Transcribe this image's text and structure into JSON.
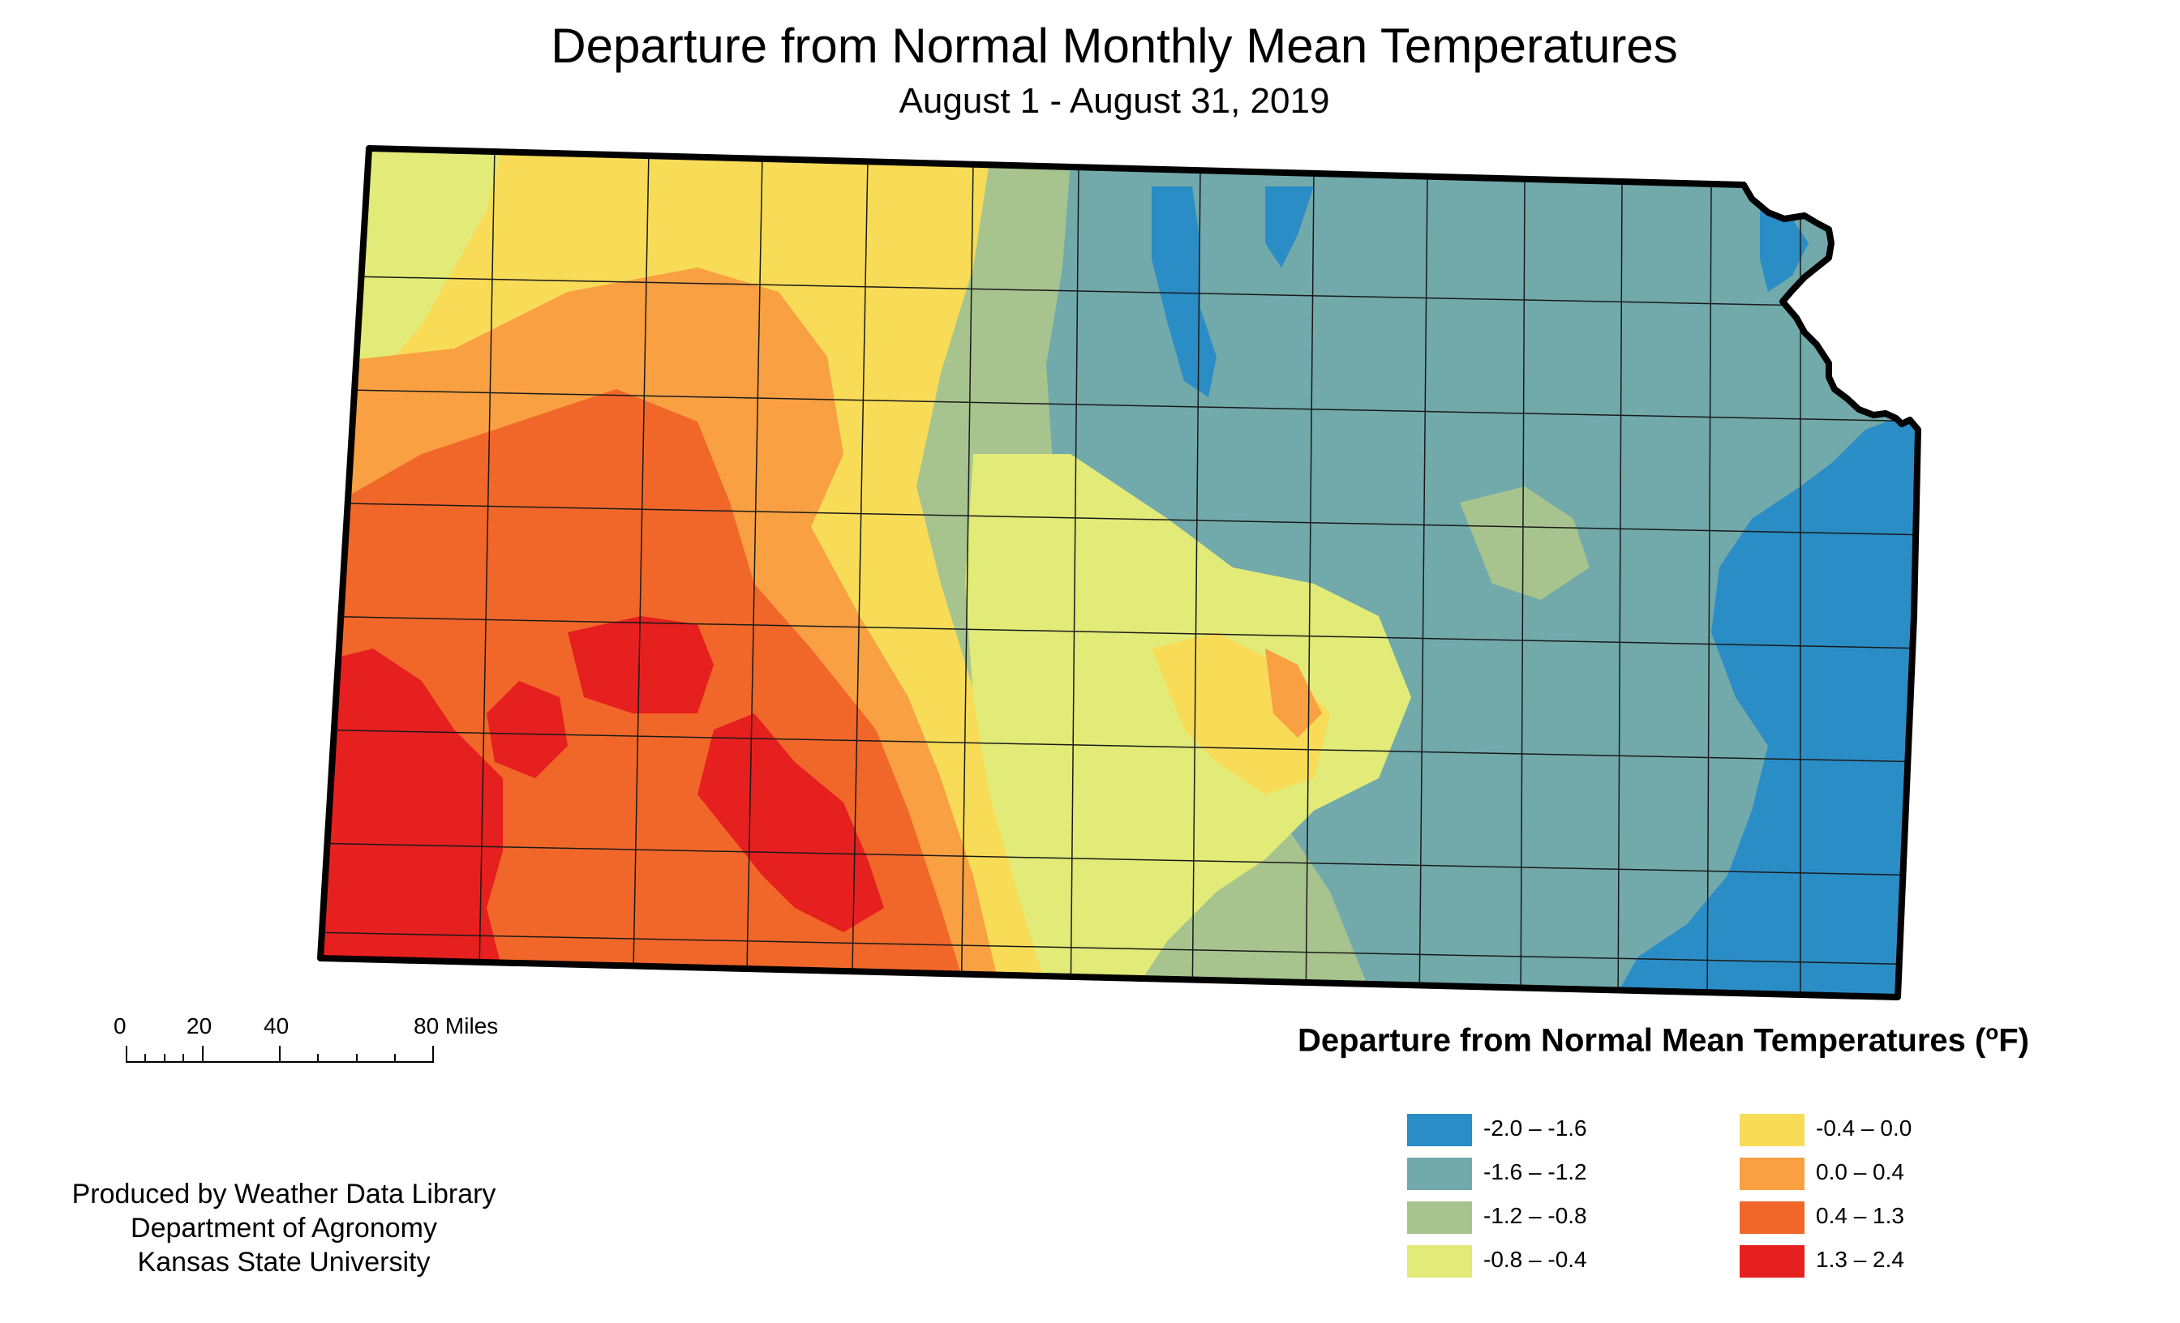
{
  "title": "Departure from Normal Monthly Mean Temperatures",
  "subtitle": "August 1 - August 31, 2019",
  "legend": {
    "title": "Departure from Normal Mean Temperatures (",
    "unit_sup": "o",
    "unit_tail": "F)",
    "items": [
      {
        "label": "-2.0 – -1.6",
        "color": "#2b8dc6"
      },
      {
        "label": "-1.6 – -1.2",
        "color": "#72a9ab"
      },
      {
        "label": "-1.2 – -0.8",
        "color": "#a7c48e"
      },
      {
        "label": "-0.8 – -0.4",
        "color": "#e2ea78"
      },
      {
        "label": "-0.4 – 0.0",
        "color": "#f8dc57"
      },
      {
        "label": "0.0 – 0.4",
        "color": "#f8a042"
      },
      {
        "label": "0.4 – 1.3",
        "color": "#f1672a"
      },
      {
        "label": "1.3 – 2.4",
        "color": "#e61f1f"
      }
    ]
  },
  "scale_bar": {
    "labels": [
      "0",
      "20",
      "40",
      "80 Miles"
    ]
  },
  "credits": [
    "Produced by Weather Data Library",
    "Department of Agronomy",
    "Kansas State University"
  ],
  "map": {
    "region": "Kansas",
    "theme": "temperature-departure-shading"
  }
}
